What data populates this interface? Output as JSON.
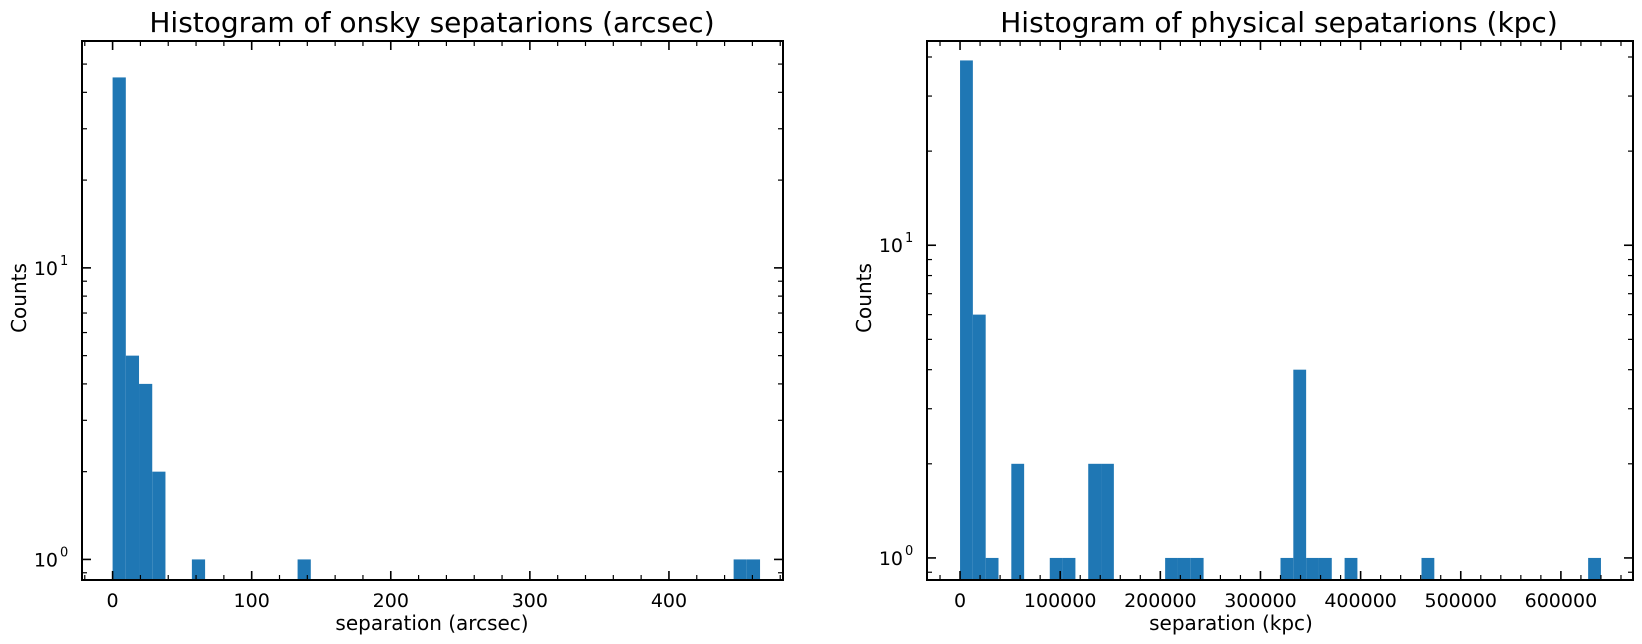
{
  "chart_data": [
    {
      "type": "bar",
      "title": "Histogram of onsky sepatarions (arcsec)",
      "xlabel": "separation (arcsec)",
      "ylabel": "Counts",
      "y_scale": "log",
      "xlim": [
        -22,
        482
      ],
      "ylim": [
        0.85,
        60
      ],
      "x_ticks": [
        0,
        100,
        200,
        300,
        400
      ],
      "x_minor_step": 20,
      "y_ticks": [
        1,
        10
      ],
      "bin_width": 9.5,
      "bars": [
        {
          "x0": 0.0,
          "value": 45
        },
        {
          "x0": 9.5,
          "value": 5
        },
        {
          "x0": 19.0,
          "value": 4
        },
        {
          "x0": 28.5,
          "value": 2
        },
        {
          "x0": 57.0,
          "value": 1
        },
        {
          "x0": 133.0,
          "value": 1
        },
        {
          "x0": 446.5,
          "value": 1
        },
        {
          "x0": 456.0,
          "value": 1
        }
      ],
      "bar_color": "#1f77b4",
      "grid": false,
      "legend": "none"
    },
    {
      "type": "bar",
      "title": "Histogram of physical sepatarions (kpc)",
      "xlabel": "separation (kpc)",
      "ylabel": "Counts",
      "y_scale": "log",
      "xlim": [
        -33000,
        672000
      ],
      "ylim": [
        0.85,
        45
      ],
      "x_ticks": [
        0,
        100000,
        200000,
        300000,
        400000,
        500000,
        600000
      ],
      "x_minor_step": 20000,
      "y_ticks": [
        1,
        10
      ],
      "bin_width": 12800,
      "bars": [
        {
          "x0": 0,
          "value": 39
        },
        {
          "x0": 12800,
          "value": 6
        },
        {
          "x0": 25600,
          "value": 1
        },
        {
          "x0": 51200,
          "value": 2
        },
        {
          "x0": 89600,
          "value": 1
        },
        {
          "x0": 102400,
          "value": 1
        },
        {
          "x0": 128000,
          "value": 2
        },
        {
          "x0": 140800,
          "value": 2
        },
        {
          "x0": 204800,
          "value": 1
        },
        {
          "x0": 217600,
          "value": 1
        },
        {
          "x0": 230400,
          "value": 1
        },
        {
          "x0": 320000,
          "value": 1
        },
        {
          "x0": 332800,
          "value": 4
        },
        {
          "x0": 345600,
          "value": 1
        },
        {
          "x0": 358400,
          "value": 1
        },
        {
          "x0": 384000,
          "value": 1
        },
        {
          "x0": 460800,
          "value": 1
        },
        {
          "x0": 627200,
          "value": 1
        }
      ],
      "bar_color": "#1f77b4",
      "grid": false,
      "legend": "none"
    }
  ]
}
